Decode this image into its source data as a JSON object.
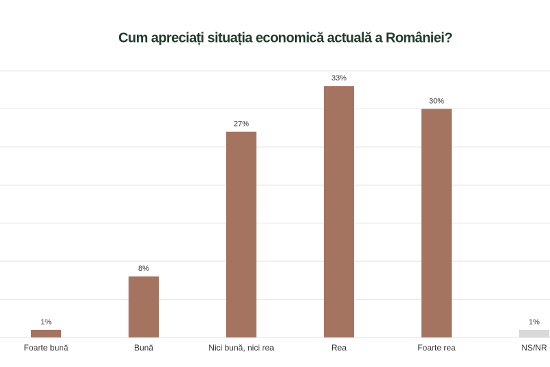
{
  "chart_data": {
    "type": "bar",
    "title": "Cum apreciați situația economică actuală a României?",
    "categories": [
      "Foarte bună",
      "Bună",
      "Nici bună, nici rea",
      "Rea",
      "Foarte rea",
      "NS/NR"
    ],
    "values": [
      1,
      8,
      27,
      33,
      30,
      1
    ],
    "value_labels": [
      "1%",
      "8%",
      "27%",
      "33%",
      "30%",
      "1%"
    ],
    "colors": [
      "#a57460",
      "#a57460",
      "#a57460",
      "#a57460",
      "#a57460",
      "#d9d9d9"
    ],
    "ylim": [
      0,
      35
    ],
    "yticks": [
      0,
      5,
      10,
      15,
      20,
      25,
      30,
      35
    ],
    "grid": true
  }
}
